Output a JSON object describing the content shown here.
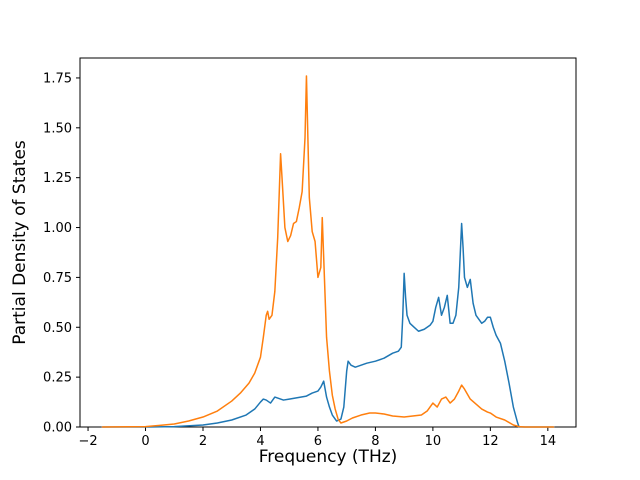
{
  "figure": {
    "background": "#ffffff"
  },
  "chart_data": {
    "type": "line",
    "title": "",
    "xlabel": "Frequency (THz)",
    "ylabel": "Partial Density of States",
    "xlim": [
      -2.28,
      14.98
    ],
    "ylim": [
      0,
      1.85
    ],
    "xticks": [
      -2,
      0,
      2,
      4,
      6,
      8,
      10,
      12,
      14
    ],
    "yticks": [
      0,
      0.25,
      0.5,
      0.75,
      1.0,
      1.25,
      1.5,
      1.75
    ],
    "grid": false,
    "legend": null,
    "series": [
      {
        "name": "pdos-blue",
        "color": "#1f77b4",
        "points": [
          [
            -1.5,
            0
          ],
          [
            -1.0,
            0
          ],
          [
            0,
            0
          ],
          [
            1.0,
            0.002
          ],
          [
            2.0,
            0.01
          ],
          [
            2.5,
            0.02
          ],
          [
            3.0,
            0.035
          ],
          [
            3.5,
            0.06
          ],
          [
            3.8,
            0.09
          ],
          [
            4.0,
            0.125
          ],
          [
            4.1,
            0.14
          ],
          [
            4.2,
            0.135
          ],
          [
            4.35,
            0.12
          ],
          [
            4.5,
            0.15
          ],
          [
            4.6,
            0.145
          ],
          [
            4.8,
            0.135
          ],
          [
            5.0,
            0.14
          ],
          [
            5.2,
            0.145
          ],
          [
            5.4,
            0.15
          ],
          [
            5.6,
            0.155
          ],
          [
            5.8,
            0.17
          ],
          [
            6.0,
            0.18
          ],
          [
            6.1,
            0.2
          ],
          [
            6.2,
            0.23
          ],
          [
            6.3,
            0.15
          ],
          [
            6.4,
            0.1
          ],
          [
            6.5,
            0.06
          ],
          [
            6.65,
            0.03
          ],
          [
            6.8,
            0.04
          ],
          [
            6.9,
            0.1
          ],
          [
            7.0,
            0.28
          ],
          [
            7.05,
            0.33
          ],
          [
            7.15,
            0.31
          ],
          [
            7.3,
            0.3
          ],
          [
            7.5,
            0.31
          ],
          [
            7.7,
            0.32
          ],
          [
            8.0,
            0.33
          ],
          [
            8.3,
            0.345
          ],
          [
            8.6,
            0.37
          ],
          [
            8.8,
            0.38
          ],
          [
            8.9,
            0.4
          ],
          [
            8.95,
            0.55
          ],
          [
            9.0,
            0.77
          ],
          [
            9.05,
            0.65
          ],
          [
            9.1,
            0.56
          ],
          [
            9.2,
            0.52
          ],
          [
            9.35,
            0.5
          ],
          [
            9.5,
            0.48
          ],
          [
            9.7,
            0.49
          ],
          [
            9.9,
            0.51
          ],
          [
            10.0,
            0.53
          ],
          [
            10.1,
            0.6
          ],
          [
            10.2,
            0.65
          ],
          [
            10.3,
            0.56
          ],
          [
            10.4,
            0.6
          ],
          [
            10.5,
            0.66
          ],
          [
            10.6,
            0.52
          ],
          [
            10.7,
            0.52
          ],
          [
            10.8,
            0.56
          ],
          [
            10.9,
            0.7
          ],
          [
            11.0,
            1.02
          ],
          [
            11.05,
            0.9
          ],
          [
            11.1,
            0.75
          ],
          [
            11.2,
            0.7
          ],
          [
            11.3,
            0.74
          ],
          [
            11.4,
            0.62
          ],
          [
            11.5,
            0.56
          ],
          [
            11.6,
            0.54
          ],
          [
            11.7,
            0.52
          ],
          [
            11.8,
            0.53
          ],
          [
            11.9,
            0.55
          ],
          [
            12.0,
            0.55
          ],
          [
            12.1,
            0.5
          ],
          [
            12.2,
            0.46
          ],
          [
            12.35,
            0.42
          ],
          [
            12.5,
            0.33
          ],
          [
            12.65,
            0.22
          ],
          [
            12.8,
            0.1
          ],
          [
            12.95,
            0.02
          ],
          [
            13.0,
            0
          ],
          [
            13.5,
            0
          ],
          [
            14.2,
            0
          ]
        ]
      },
      {
        "name": "pdos-orange",
        "color": "#ff7f0e",
        "points": [
          [
            -1.5,
            0
          ],
          [
            0,
            0.002
          ],
          [
            0.5,
            0.008
          ],
          [
            1.0,
            0.015
          ],
          [
            1.5,
            0.03
          ],
          [
            2.0,
            0.05
          ],
          [
            2.5,
            0.08
          ],
          [
            3.0,
            0.13
          ],
          [
            3.3,
            0.17
          ],
          [
            3.6,
            0.22
          ],
          [
            3.8,
            0.27
          ],
          [
            4.0,
            0.35
          ],
          [
            4.1,
            0.45
          ],
          [
            4.2,
            0.56
          ],
          [
            4.25,
            0.58
          ],
          [
            4.3,
            0.54
          ],
          [
            4.4,
            0.56
          ],
          [
            4.5,
            0.68
          ],
          [
            4.6,
            0.95
          ],
          [
            4.7,
            1.37
          ],
          [
            4.75,
            1.25
          ],
          [
            4.85,
            1.0
          ],
          [
            4.95,
            0.93
          ],
          [
            5.05,
            0.96
          ],
          [
            5.15,
            1.02
          ],
          [
            5.25,
            1.03
          ],
          [
            5.35,
            1.1
          ],
          [
            5.45,
            1.18
          ],
          [
            5.55,
            1.45
          ],
          [
            5.6,
            1.76
          ],
          [
            5.65,
            1.45
          ],
          [
            5.7,
            1.15
          ],
          [
            5.8,
            0.98
          ],
          [
            5.9,
            0.93
          ],
          [
            6.0,
            0.75
          ],
          [
            6.1,
            0.8
          ],
          [
            6.15,
            1.05
          ],
          [
            6.2,
            0.85
          ],
          [
            6.3,
            0.45
          ],
          [
            6.4,
            0.28
          ],
          [
            6.5,
            0.16
          ],
          [
            6.6,
            0.09
          ],
          [
            6.7,
            0.04
          ],
          [
            6.8,
            0.02
          ],
          [
            6.9,
            0.025
          ],
          [
            7.0,
            0.03
          ],
          [
            7.2,
            0.045
          ],
          [
            7.5,
            0.06
          ],
          [
            7.8,
            0.07
          ],
          [
            8.0,
            0.07
          ],
          [
            8.3,
            0.065
          ],
          [
            8.6,
            0.055
          ],
          [
            9.0,
            0.05
          ],
          [
            9.3,
            0.055
          ],
          [
            9.6,
            0.06
          ],
          [
            9.8,
            0.08
          ],
          [
            10.0,
            0.12
          ],
          [
            10.15,
            0.1
          ],
          [
            10.3,
            0.14
          ],
          [
            10.45,
            0.15
          ],
          [
            10.6,
            0.12
          ],
          [
            10.75,
            0.14
          ],
          [
            10.9,
            0.18
          ],
          [
            11.0,
            0.21
          ],
          [
            11.1,
            0.19
          ],
          [
            11.3,
            0.14
          ],
          [
            11.5,
            0.115
          ],
          [
            11.7,
            0.09
          ],
          [
            11.9,
            0.075
          ],
          [
            12.0,
            0.07
          ],
          [
            12.2,
            0.05
          ],
          [
            12.5,
            0.035
          ],
          [
            12.8,
            0.01
          ],
          [
            13.0,
            0.002
          ],
          [
            13.2,
            0
          ],
          [
            14.2,
            0
          ]
        ]
      }
    ]
  }
}
